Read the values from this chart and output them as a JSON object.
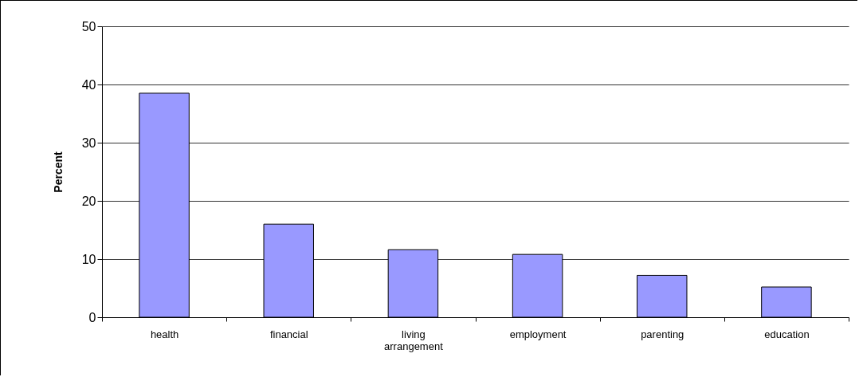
{
  "chart_data": {
    "type": "bar",
    "ylabel": "Percent",
    "categories": [
      "health",
      "financial",
      "living arrangement",
      "employment",
      "parenting",
      "education"
    ],
    "values": [
      38.5,
      16.0,
      11.6,
      10.8,
      7.2,
      5.2
    ],
    "color": "#9999ff",
    "ylim": [
      0,
      50
    ],
    "yticks": [
      0,
      10,
      20,
      30,
      40,
      50
    ],
    "grid": "y"
  }
}
